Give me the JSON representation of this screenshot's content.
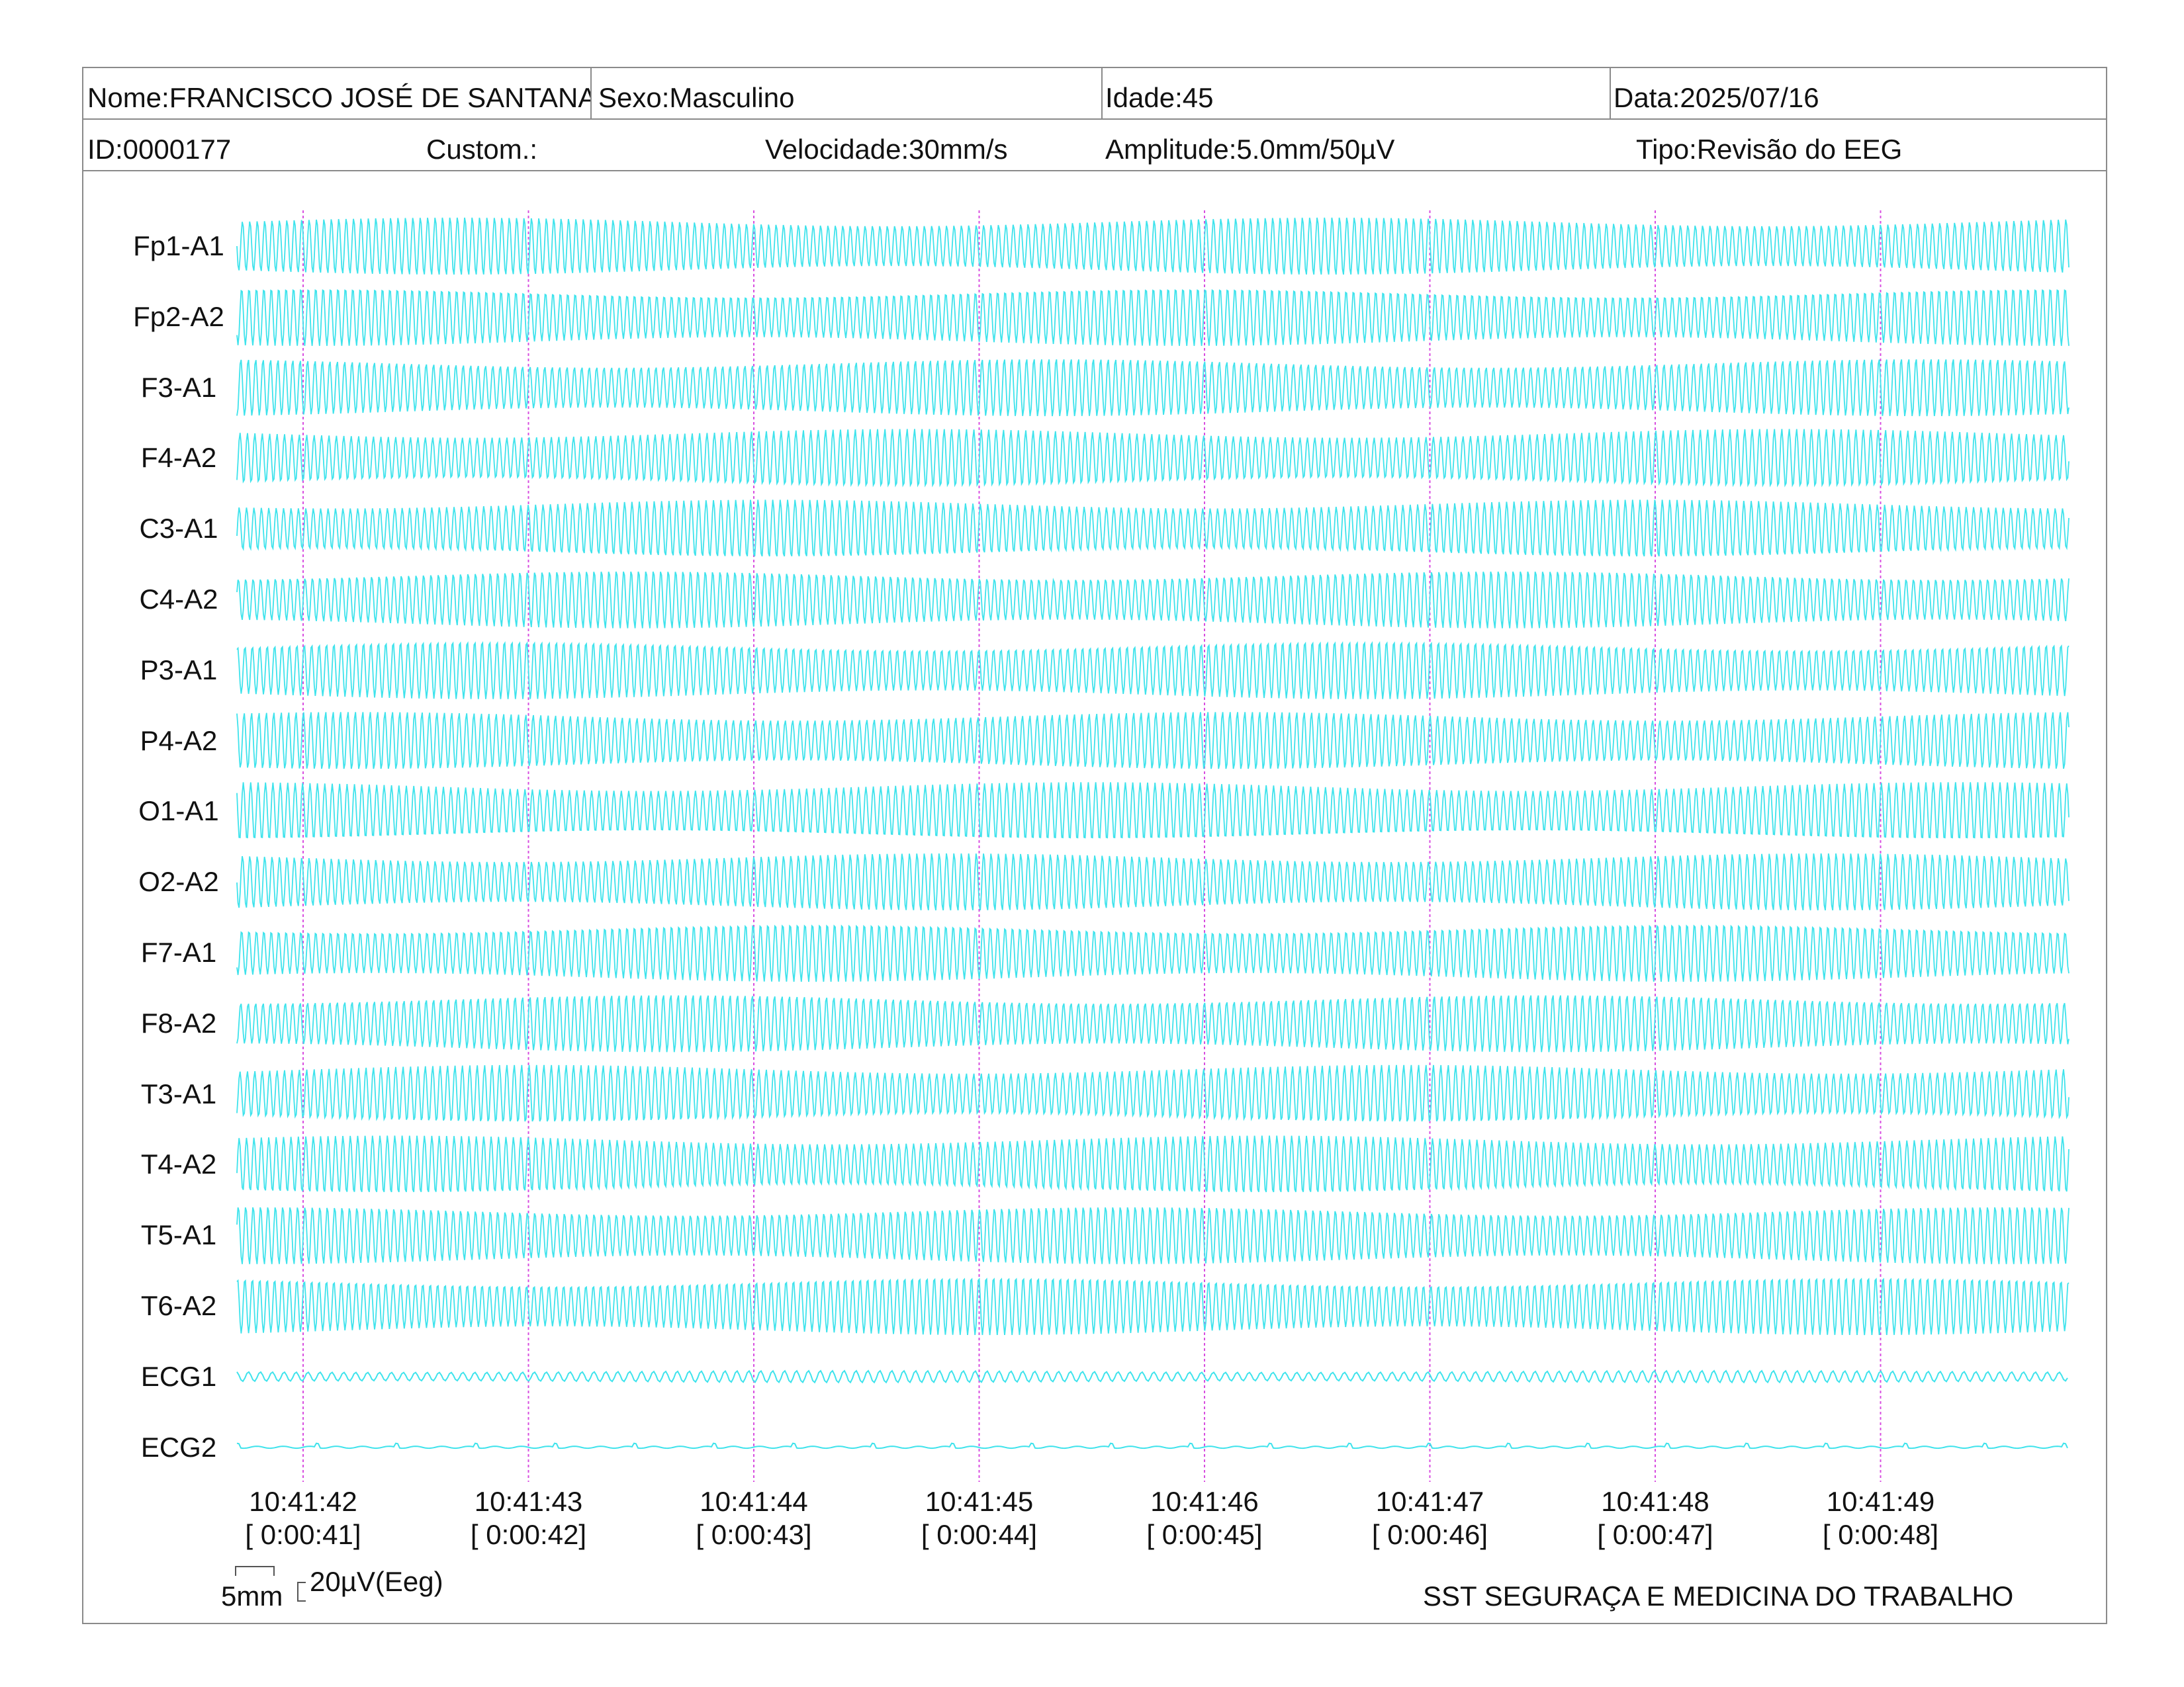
{
  "header": {
    "nome": "Nome:FRANCISCO JOSÉ DE SANTANA",
    "sexo": "Sexo:Masculino",
    "idade": "Idade:45",
    "data": "Data:2025/07/16",
    "id": "ID:0000177",
    "custom": "Custom.:",
    "velocidade": "Velocidade:30mm/s",
    "amplitude": "Amplitude:5.0mm/50µV",
    "tipo": "Tipo:Revisão do EEG"
  },
  "channels": [
    "Fp1-A1",
    "Fp2-A2",
    "F3-A1",
    "F4-A2",
    "C3-A1",
    "C4-A2",
    "P3-A1",
    "P4-A2",
    "O1-A1",
    "O2-A2",
    "F7-A1",
    "F8-A2",
    "T3-A1",
    "T4-A2",
    "T5-A1",
    "T6-A2",
    "ECG1",
    "ECG2"
  ],
  "timestamps": [
    {
      "clock": "10:41:42",
      "elapsed": "[ 0:00:41]"
    },
    {
      "clock": "10:41:43",
      "elapsed": "[ 0:00:42]"
    },
    {
      "clock": "10:41:44",
      "elapsed": "[ 0:00:43]"
    },
    {
      "clock": "10:41:45",
      "elapsed": "[ 0:00:44]"
    },
    {
      "clock": "10:41:46",
      "elapsed": "[ 0:00:45]"
    },
    {
      "clock": "10:41:47",
      "elapsed": "[ 0:00:46]"
    },
    {
      "clock": "10:41:48",
      "elapsed": "[ 0:00:47]"
    },
    {
      "clock": "10:41:49",
      "elapsed": "[ 0:00:48]"
    }
  ],
  "scale": {
    "time_label": "5mm",
    "amp_label": "20µV(Eeg)"
  },
  "footer": "SST SEGURAÇA E MEDICINA DO TRABALHO",
  "colors": {
    "trace": "#3fe3ec",
    "second_marker": "#d84ee0",
    "frame": "#8a8a8a"
  }
}
